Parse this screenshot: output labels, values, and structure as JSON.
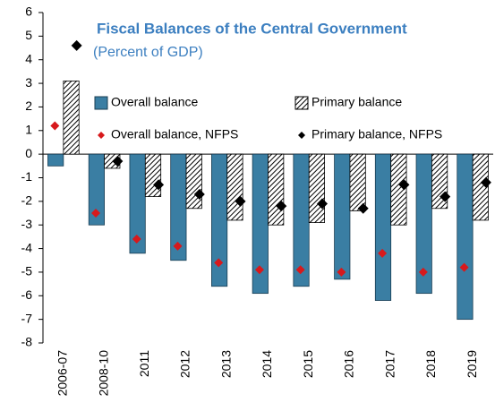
{
  "chart_data": {
    "type": "bar",
    "title": "Fiscal Balances of the Central Government",
    "subtitle": "(Percent of GDP)",
    "categories": [
      "2006-07",
      "2008-10",
      "2011",
      "2012",
      "2013",
      "2014",
      "2015",
      "2016",
      "2017",
      "2018",
      "2019"
    ],
    "series": [
      {
        "name": "Overall balance",
        "color": "#3a7ea3",
        "style": "bar",
        "values": [
          -0.5,
          -3.0,
          -4.2,
          -4.5,
          -5.6,
          -5.9,
          -5.6,
          -5.3,
          -6.2,
          -5.9,
          -7.0
        ]
      },
      {
        "name": "Primary balance",
        "color": "#000000",
        "style": "hatched-bar",
        "values": [
          3.1,
          -0.6,
          -1.8,
          -2.3,
          -2.8,
          -3.0,
          -2.9,
          -2.4,
          -3.0,
          -2.3,
          -2.8
        ]
      },
      {
        "name": "Overall balance, NFPS",
        "color": "#d7191c",
        "style": "diamond",
        "values": [
          1.2,
          -2.5,
          -3.6,
          -3.9,
          -4.6,
          -4.9,
          -4.9,
          -5.0,
          -4.2,
          -5.0,
          -4.8
        ]
      },
      {
        "name": "Primary balance, NFPS",
        "color": "#000000",
        "style": "diamond",
        "values": [
          4.6,
          -0.3,
          -1.3,
          -1.7,
          -2.0,
          -2.2,
          -2.1,
          -2.3,
          -1.3,
          -1.8,
          -1.2
        ]
      }
    ],
    "ylim": [
      -8,
      6
    ],
    "yticks": [
      -8,
      -7,
      -6,
      -5,
      -4,
      -3,
      -2,
      -1,
      0,
      1,
      2,
      3,
      4,
      5,
      6
    ]
  }
}
